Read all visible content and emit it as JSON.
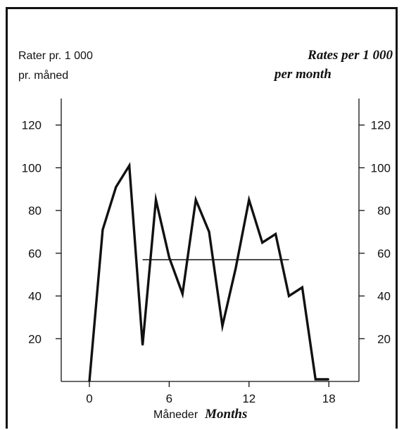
{
  "chart_data": {
    "type": "line",
    "ylabel_left": [
      "Rater pr. 1 000",
      "pr. måned"
    ],
    "ylabel_right": [
      "Rates per 1 000",
      "per month"
    ],
    "xlabel_no": "Måneder",
    "xlabel_en": "Months",
    "x_ticks": [
      0,
      6,
      12,
      18
    ],
    "y_ticks_left": [
      20,
      40,
      60,
      80,
      100,
      120
    ],
    "y_ticks_right": [
      20,
      40,
      60,
      80,
      100,
      120
    ],
    "xlim": [
      -2,
      19.5
    ],
    "ylim": [
      0,
      130
    ],
    "grid": false,
    "series": [
      {
        "x": [
          0,
          1,
          2,
          3,
          4,
          5,
          6,
          7,
          8,
          9,
          10,
          11,
          12,
          13,
          14,
          15,
          16,
          17,
          18
        ],
        "values": [
          0,
          71,
          91,
          101,
          17,
          85,
          58,
          41,
          85,
          70,
          26,
          53,
          85,
          65,
          69,
          40,
          44,
          1,
          1
        ]
      }
    ],
    "reference_line": {
      "y": 57,
      "x_start": 4,
      "x_end": 15
    }
  }
}
